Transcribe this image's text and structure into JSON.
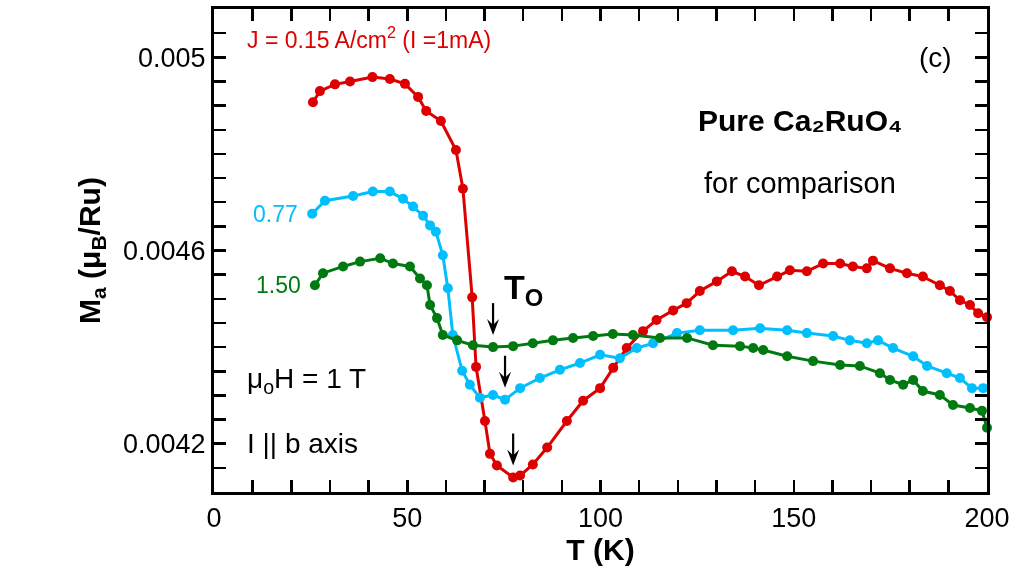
{
  "chart_data": {
    "type": "line",
    "xlabel": "T (K)",
    "ylabel": "M$_{a}$ (μ$_{B}$/Ru)",
    "xlim": [
      0,
      200
    ],
    "xticks": [
      0,
      {
        "value": 10,
        "label": null
      },
      {
        "value": 20,
        "label": null
      },
      {
        "value": 30,
        "label": null
      },
      {
        "value": 40,
        "label": null
      },
      50,
      {
        "value": 60,
        "label": null
      },
      {
        "value": 70,
        "label": null
      },
      {
        "value": 80,
        "label": null
      },
      {
        "value": 90,
        "label": null
      },
      100,
      {
        "value": 110,
        "label": null
      },
      {
        "value": 120,
        "label": null
      },
      {
        "value": 130,
        "label": null
      },
      {
        "value": 140,
        "label": null
      },
      150,
      {
        "value": 160,
        "label": null
      },
      {
        "value": 170,
        "label": null
      },
      {
        "value": 180,
        "label": null
      },
      {
        "value": 190,
        "label": null
      },
      200
    ],
    "ylim": [
      0.0041,
      0.0051
    ],
    "yticks": [
      {
        "value": 0.00415,
        "label": null
      },
      0.0042,
      {
        "value": 0.00425,
        "label": null
      },
      {
        "value": 0.0043,
        "label": null
      },
      {
        "value": 0.00435,
        "label": null
      },
      {
        "value": 0.0044,
        "label": null
      },
      {
        "value": 0.00445,
        "label": null
      },
      {
        "value": 0.0045,
        "label": null
      },
      {
        "value": 0.00455,
        "label": null
      },
      0.0046,
      {
        "value": 0.00465,
        "label": null
      },
      {
        "value": 0.0047,
        "label": null
      },
      {
        "value": 0.00475,
        "label": null
      },
      {
        "value": 0.0048,
        "label": null
      },
      {
        "value": 0.00485,
        "label": null
      },
      {
        "value": 0.0049,
        "label": null
      },
      {
        "value": 0.00495,
        "label": null
      },
      0.005,
      {
        "value": 0.00505,
        "label": null
      }
    ],
    "grid": false,
    "legend": false,
    "marker": "circle",
    "line_style": "solid",
    "series": [
      {
        "name": "J = 0.15 A/cm$^{2}$ (I =1mA)",
        "color": "#dd0000",
        "x": [
          25.6,
          27.4,
          31.3,
          35.2,
          41,
          45.5,
          49.4,
          52.8,
          54.9,
          58.7,
          62.6,
          64.4,
          66.8,
          67.8,
          70.1,
          71.4,
          73.2,
          77.4,
          79.2,
          82.5,
          86.2,
          91.3,
          95.5,
          99.9,
          103.3,
          106.8,
          111,
          114.5,
          118.8,
          122.3,
          125.7,
          130.1,
          134,
          137.4,
          141,
          145.7,
          149,
          153.4,
          157.6,
          162,
          165.3,
          168.9,
          170.5,
          174.9,
          179.3,
          183.4,
          187.8,
          190.4,
          193,
          195.6,
          197.7,
          200
        ],
        "values": [
          0.004907,
          0.00493,
          0.004944,
          0.00495,
          0.004959,
          0.004955,
          0.004945,
          0.004918,
          0.004889,
          0.004868,
          0.004808,
          0.004728,
          0.004503,
          0.004359,
          0.004247,
          0.004179,
          0.004155,
          0.00413,
          0.004134,
          0.004157,
          0.004192,
          0.004247,
          0.004289,
          0.004315,
          0.004357,
          0.004398,
          0.004433,
          0.004456,
          0.004476,
          0.004491,
          0.004516,
          0.004536,
          0.004557,
          0.004546,
          0.004528,
          0.004546,
          0.004559,
          0.004557,
          0.004573,
          0.004573,
          0.004567,
          0.004563,
          0.004579,
          0.004563,
          0.004553,
          0.004546,
          0.004528,
          0.004516,
          0.004497,
          0.004487,
          0.00447,
          0.004462
        ]
      },
      {
        "name": "0.77",
        "color": "#00bfff",
        "x": [
          25.4,
          28.7,
          36,
          41.1,
          45.5,
          48.9,
          51.5,
          54.1,
          55.9,
          57.4,
          59.2,
          60.5,
          61.8,
          64.2,
          66.2,
          68.8,
          72.2,
          75.3,
          79.2,
          84.3,
          89.5,
          94.7,
          99.9,
          105,
          109.4,
          113.6,
          119.8,
          125.7,
          134.3,
          141.3,
          148.3,
          153.4,
          160.2,
          164.5,
          168.9,
          171.8,
          175.7,
          180.9,
          184.5,
          189.6,
          193,
          196.1,
          199
        ],
        "values": [
          0.004676,
          0.004703,
          0.004713,
          0.004722,
          0.004722,
          0.004707,
          0.004691,
          0.004672,
          0.004652,
          0.004639,
          0.00459,
          0.004522,
          0.004425,
          0.004351,
          0.004322,
          0.004295,
          0.004301,
          0.004291,
          0.004315,
          0.004336,
          0.004353,
          0.004367,
          0.004384,
          0.004377,
          0.004398,
          0.004408,
          0.004429,
          0.004435,
          0.004435,
          0.004439,
          0.004435,
          0.004429,
          0.004423,
          0.004414,
          0.004408,
          0.004414,
          0.004398,
          0.004381,
          0.004361,
          0.004346,
          0.004336,
          0.004315,
          0.004315
        ]
      },
      {
        "name": "1.50",
        "color": "#007a10",
        "x": [
          26.1,
          28.2,
          33.4,
          37.8,
          43,
          46.3,
          50.7,
          53.3,
          55.1,
          55.9,
          57.7,
          59.2,
          62.9,
          67,
          72.2,
          77.4,
          82.5,
          87.7,
          92.9,
          98.1,
          103.2,
          108.4,
          115.4,
          122.4,
          129.1,
          136.1,
          139.5,
          142.1,
          148.3,
          155,
          162,
          167.1,
          172.3,
          174.9,
          178.3,
          180.9,
          183.4,
          187.8,
          191.2,
          195.6,
          198.7,
          200
        ],
        "values": [
          0.004528,
          0.004553,
          0.004567,
          0.004577,
          0.004584,
          0.004573,
          0.004567,
          0.004542,
          0.004528,
          0.004487,
          0.00446,
          0.004425,
          0.004414,
          0.004404,
          0.0044,
          0.004402,
          0.004408,
          0.004414,
          0.004419,
          0.004423,
          0.004427,
          0.004425,
          0.004419,
          0.004419,
          0.004404,
          0.004402,
          0.004398,
          0.004394,
          0.004381,
          0.004371,
          0.004363,
          0.004361,
          0.004346,
          0.004332,
          0.004322,
          0.004332,
          0.004309,
          0.004301,
          0.00428,
          0.004274,
          0.004268,
          0.004233
        ]
      }
    ],
    "annotations": [
      "(c)",
      "Pure Ca₂RuO₄",
      "for comparison",
      "T$_{O}$",
      "μ$_{o}$H = 1 T",
      "I || b axis"
    ]
  }
}
